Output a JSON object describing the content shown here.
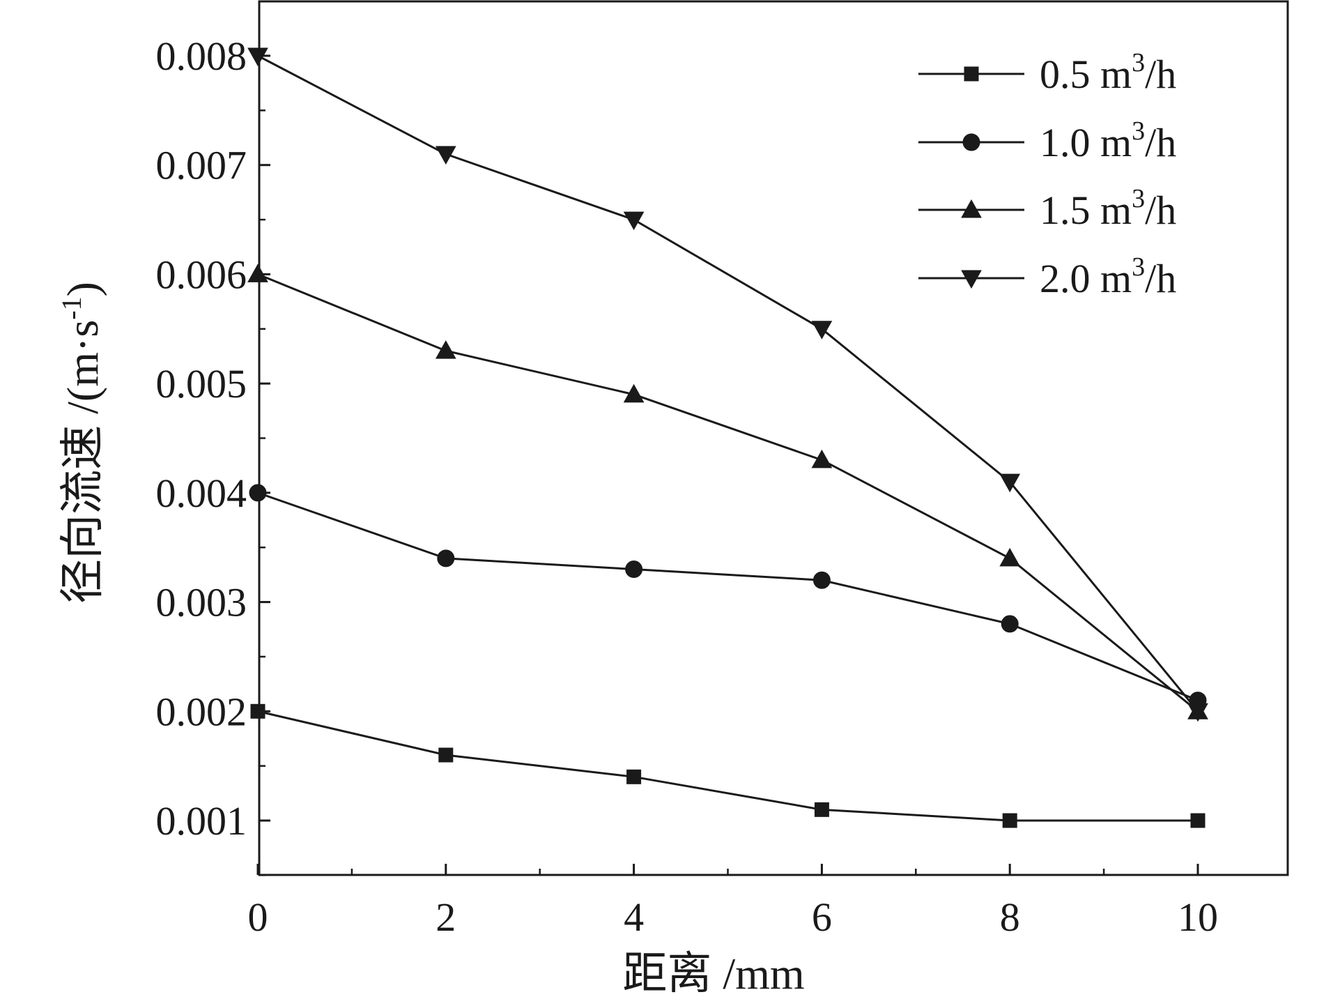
{
  "chart_data": {
    "type": "line",
    "xlabel": "距离 /mm",
    "ylabel": "径向流速 /(m·s",
    "ylabel_sup": "-1",
    "ylabel_close": ")",
    "xlim": [
      0,
      11
    ],
    "ylim": [
      0.0005,
      0.0085
    ],
    "x_ticks": [
      0,
      2,
      4,
      6,
      8,
      10
    ],
    "x_tick_labels": [
      "0",
      "2",
      "4",
      "6",
      "8",
      "10"
    ],
    "x_minor_ticks": [
      1,
      3,
      5,
      7,
      9
    ],
    "y_ticks": [
      0.001,
      0.002,
      0.003,
      0.004,
      0.005,
      0.006,
      0.007,
      0.008
    ],
    "y_tick_labels": [
      "0.001",
      "0.002",
      "0.003",
      "0.004",
      "0.005",
      "0.006",
      "0.007",
      "0.008"
    ],
    "y_minor_ticks": [
      0.0005,
      0.0015,
      0.0025,
      0.0035,
      0.0045,
      0.0055,
      0.0065,
      0.0075
    ],
    "grid": false,
    "legend_position": "top-right",
    "x": [
      0,
      2,
      4,
      6,
      8,
      10
    ],
    "series": [
      {
        "name": "0.5 m",
        "name_sup": "3",
        "name_suffix": "/h",
        "marker": "square",
        "values": [
          0.002,
          0.0016,
          0.0014,
          0.0011,
          0.001,
          0.001
        ]
      },
      {
        "name": "1.0 m",
        "name_sup": "3",
        "name_suffix": "/h",
        "marker": "circle",
        "values": [
          0.004,
          0.0034,
          0.0033,
          0.0032,
          0.0028,
          0.0021
        ]
      },
      {
        "name": "1.5 m",
        "name_sup": "3",
        "name_suffix": "/h",
        "marker": "triangle-up",
        "values": [
          0.006,
          0.0053,
          0.0049,
          0.0043,
          0.0034,
          0.002
        ]
      },
      {
        "name": "2.0 m",
        "name_sup": "3",
        "name_suffix": "/h",
        "marker": "triangle-down",
        "values": [
          0.008,
          0.0071,
          0.0065,
          0.0055,
          0.0041,
          0.002
        ]
      }
    ],
    "colors": {
      "line": "#1a1a1a",
      "background": "#ffffff"
    }
  }
}
